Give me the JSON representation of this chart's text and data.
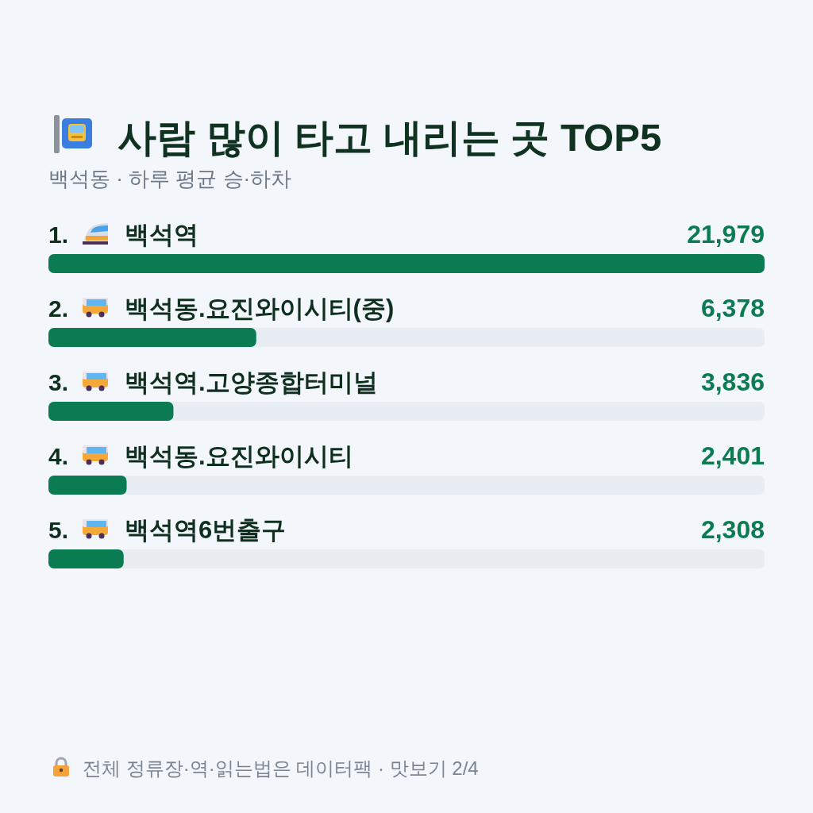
{
  "chart_data": {
    "type": "bar",
    "orientation": "horizontal",
    "title": "사람 많이 타고 내리는 곳 TOP5",
    "subtitle": "백석동 · 하루 평균 승·하차",
    "categories": [
      "1. 백석역",
      "2. 백석동.요진와이시티(중)",
      "3. 백석역.고양종합터미널",
      "4. 백석동.요진와이시티",
      "5. 백석역6번출구"
    ],
    "values": [
      21979,
      6378,
      3836,
      2401,
      2308
    ],
    "color": "#0b7b52",
    "value_labels": [
      "21,979",
      "6,378",
      "3,836",
      "2,401",
      "2,308"
    ],
    "annotations": [
      "전체 정류장·역·읽는법은 데이터팩 · 맛보기 2/4"
    ]
  }
}
